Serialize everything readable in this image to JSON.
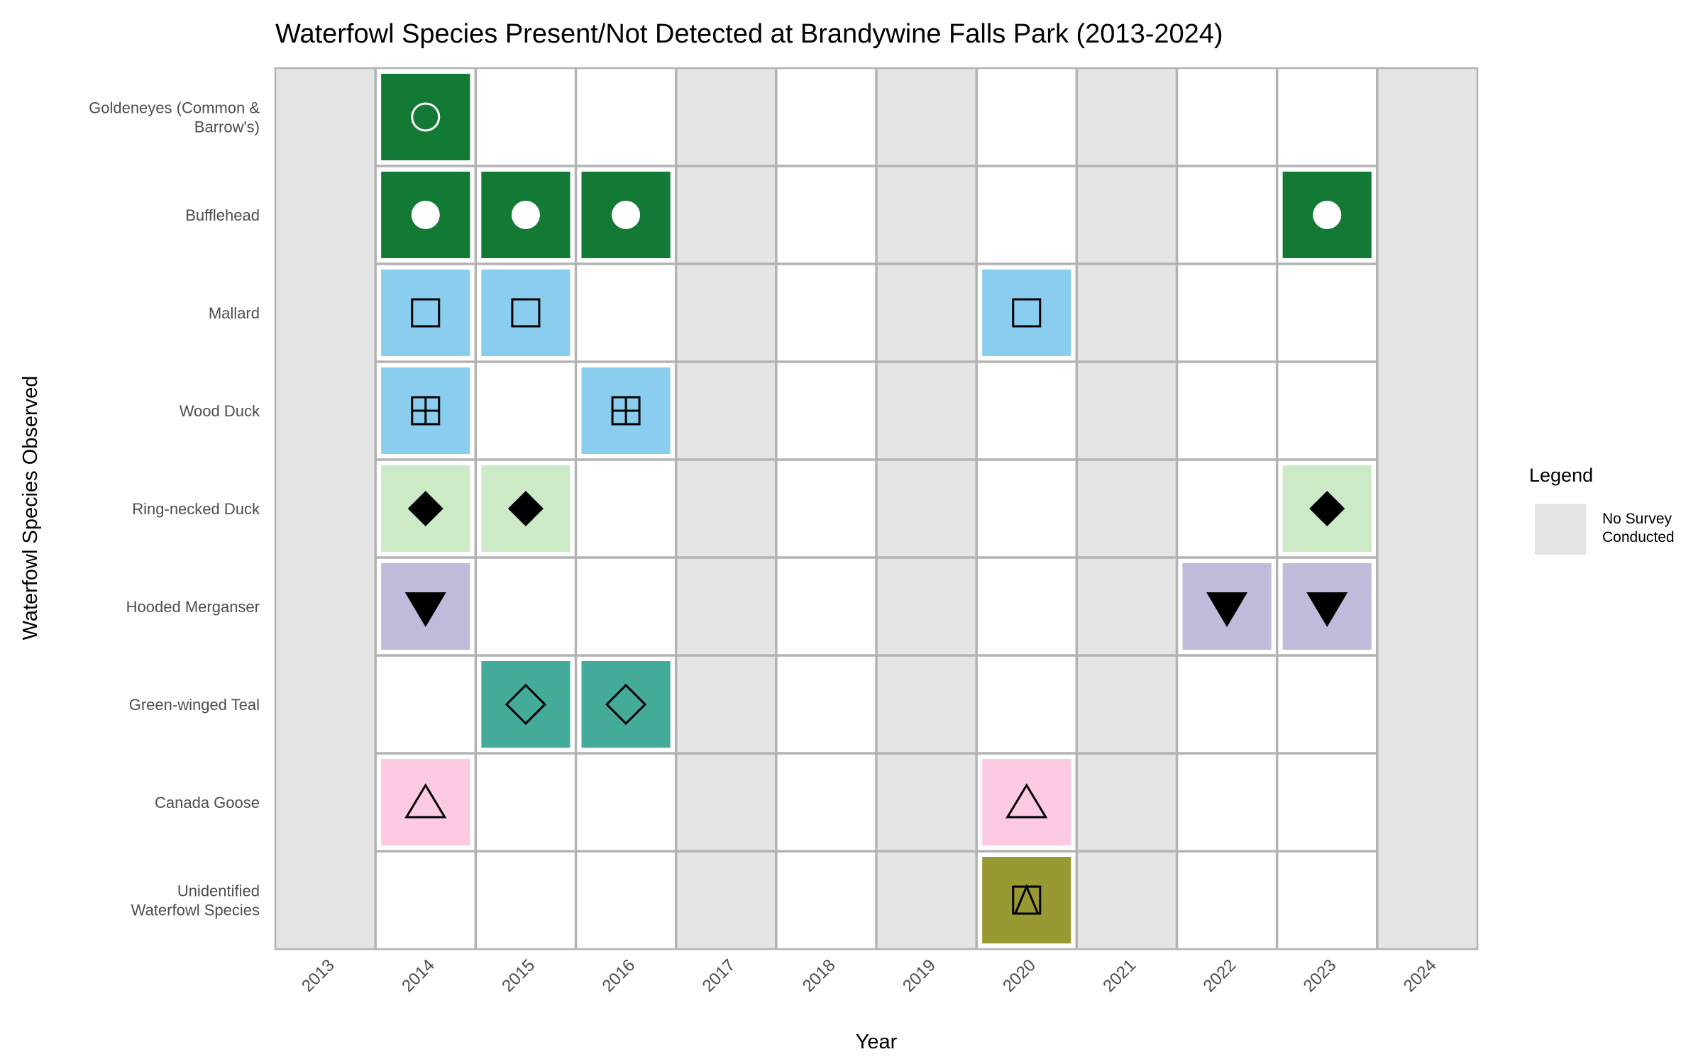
{
  "chart_data": {
    "type": "heatmap",
    "title": "Waterfowl Species Present/Not Detected at Brandywine Falls Park (2013-2024)",
    "xlabel": "Year",
    "ylabel": "Waterfowl Species Observed",
    "years": [
      "2013",
      "2014",
      "2015",
      "2016",
      "2017",
      "2018",
      "2019",
      "2020",
      "2021",
      "2022",
      "2023",
      "2024"
    ],
    "no_survey_years": [
      "2013",
      "2017",
      "2019",
      "2021",
      "2024"
    ],
    "species": [
      {
        "label": "Goldeneyes (Common & Barrow's)",
        "lines": [
          "Goldeneyes (Common &",
          "Barrow's)"
        ],
        "color": "#137a35",
        "marker": "circle-open",
        "marker_color": "#ffffff",
        "present": [
          "2014"
        ]
      },
      {
        "label": "Bufflehead",
        "lines": [
          "Bufflehead"
        ],
        "color": "#137a35",
        "marker": "circle-filled",
        "marker_color": "#ffffff",
        "present": [
          "2014",
          "2015",
          "2016",
          "2023"
        ]
      },
      {
        "label": "Mallard",
        "lines": [
          "Mallard"
        ],
        "color": "#8bcdef",
        "marker": "square-open",
        "marker_color": "#000000",
        "present": [
          "2014",
          "2015",
          "2020"
        ]
      },
      {
        "label": "Wood Duck",
        "lines": [
          "Wood Duck"
        ],
        "color": "#8bcdef",
        "marker": "square-plus",
        "marker_color": "#000000",
        "present": [
          "2014",
          "2016"
        ]
      },
      {
        "label": "Ring-necked Duck",
        "lines": [
          "Ring-necked Duck"
        ],
        "color": "#cdeac6",
        "marker": "diamond-filled",
        "marker_color": "#000000",
        "present": [
          "2014",
          "2015",
          "2023"
        ]
      },
      {
        "label": "Hooded Merganser",
        "lines": [
          "Hooded Merganser"
        ],
        "color": "#bebbdb",
        "marker": "triangle-down-filled",
        "marker_color": "#000000",
        "present": [
          "2014",
          "2022",
          "2023"
        ]
      },
      {
        "label": "Green-winged Teal",
        "lines": [
          "Green-winged Teal"
        ],
        "color": "#44ab9b",
        "marker": "diamond-open",
        "marker_color": "#000000",
        "present": [
          "2015",
          "2016"
        ]
      },
      {
        "label": "Canada Goose",
        "lines": [
          "Canada Goose"
        ],
        "color": "#fdcae4",
        "marker": "triangle-open",
        "marker_color": "#000000",
        "present": [
          "2014",
          "2020"
        ]
      },
      {
        "label": "Unidentified Waterfowl Species",
        "lines": [
          "Unidentified",
          "Waterfowl Species"
        ],
        "color": "#999934",
        "marker": "square-triangle",
        "marker_color": "#000000",
        "present": [
          "2020"
        ]
      }
    ],
    "legend": {
      "title": "Legend",
      "placement": "right",
      "entries": [
        {
          "lines": [
            "No Survey",
            "Conducted"
          ],
          "color": "#e5e5e5"
        }
      ]
    },
    "colors": {
      "no_survey": "#e5e5e5",
      "grid": "#b3b3b3",
      "panel_border": "#b3b3b3"
    }
  }
}
